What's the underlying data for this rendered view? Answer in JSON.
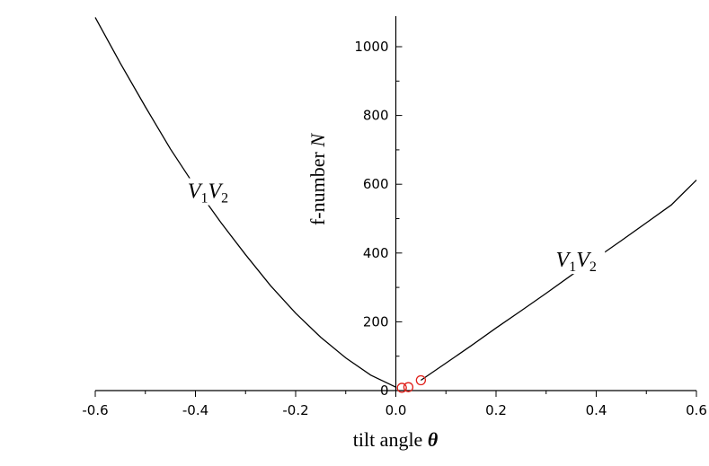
{
  "chart_data": {
    "type": "line",
    "xlabel": "tilt angle",
    "xlabel_symbol": "θ",
    "ylabel": "f-number",
    "ylabel_symbol": "N",
    "xlim": [
      -0.6,
      0.6
    ],
    "ylim": [
      0,
      1080
    ],
    "x_ticks": [
      "-0.6",
      "-0.4",
      "-0.2",
      "0.0",
      "0.2",
      "0.4",
      "0.6"
    ],
    "y_ticks": [
      "0",
      "200",
      "400",
      "600",
      "800",
      "1000"
    ],
    "grid": false,
    "series": [
      {
        "name": "V1V2",
        "name_main": "V",
        "name_sub1": "1",
        "name_main2": "V",
        "name_sub2": "2",
        "color": "#000000",
        "x": [
          -0.6,
          -0.55,
          -0.5,
          -0.45,
          -0.4,
          -0.35,
          -0.3,
          -0.25,
          -0.2,
          -0.15,
          -0.1,
          -0.05,
          0.0
        ],
        "y": [
          1085,
          952,
          825,
          703,
          592,
          490,
          395,
          305,
          225,
          155,
          95,
          45,
          10
        ]
      },
      {
        "name": "V1V2",
        "name_main": "V",
        "name_sub1": "1",
        "name_main2": "V",
        "name_sub2": "2",
        "color": "#000000",
        "x": [
          0.05,
          0.1,
          0.15,
          0.2,
          0.25,
          0.3,
          0.35,
          0.4,
          0.45,
          0.5,
          0.55,
          0.6
        ],
        "y": [
          30,
          80,
          130,
          182,
          232,
          283,
          335,
          385,
          436,
          488,
          540,
          612
        ]
      },
      {
        "name": "",
        "type": "scatter",
        "marker": "circle",
        "color": "#e0201a",
        "x": [
          0.012,
          0.025,
          0.05
        ],
        "y": [
          8,
          10,
          30
        ]
      }
    ],
    "curve_labels": [
      {
        "series": 0,
        "x": -0.375,
        "y": 560
      },
      {
        "series": 1,
        "x": 0.36,
        "y": 360
      }
    ]
  }
}
